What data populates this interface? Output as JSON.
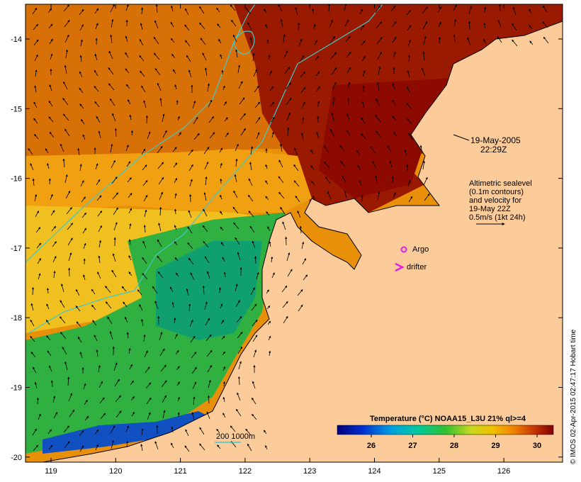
{
  "map": {
    "x_ticks": [
      "119",
      "120",
      "121",
      "122",
      "123",
      "124",
      "125",
      "126"
    ],
    "y_ticks": [
      "-14",
      "-15",
      "-16",
      "-17",
      "-18",
      "-19",
      "-20"
    ],
    "date_line1": "19-May-2005",
    "date_line2": "22:29Z",
    "legend_lines": [
      "Altimetric sealevel",
      "(0.1m contours)",
      "and velocity for",
      "19-May 22Z",
      "0.5m/s (1kt 24h)"
    ],
    "argo_label": "Argo",
    "drifter_label": "drifter",
    "depth_label": "200  1000m",
    "colorbar_title": "Temperature (°C) NOAA15_L3U 21% ql>=4",
    "colorbar_ticks": [
      "26",
      "27",
      "28",
      "29",
      "30"
    ],
    "credit": "© IMOS 02-Apr-2015 02:47:17 Hobart time",
    "colors": {
      "land": "#fccb9a",
      "contour": "#40c8c8",
      "marker": "#e020e0",
      "hot": "#8c0a00",
      "warm": "#e07000",
      "cool": "#20b040"
    }
  }
}
